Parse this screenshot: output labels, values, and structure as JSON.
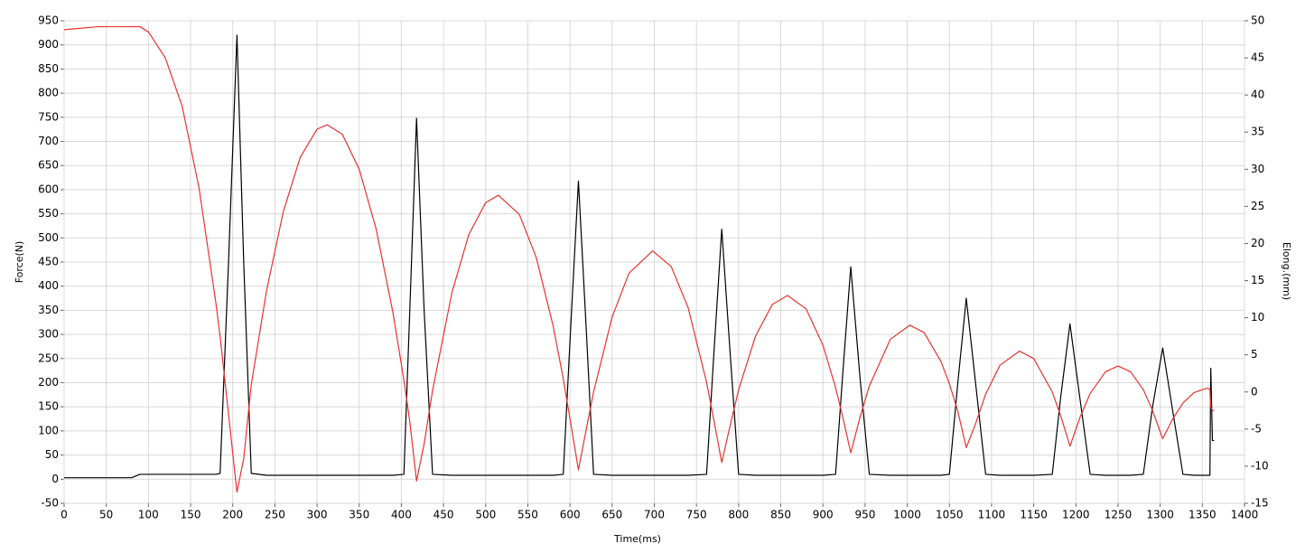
{
  "chart_data": {
    "type": "line",
    "xlabel": "Time(ms)",
    "ylabel": "Force(N)",
    "y2label": "Elong.(mm)",
    "x": [
      0,
      20,
      40,
      60,
      80,
      90,
      100,
      120,
      140,
      160,
      180,
      185,
      195,
      205,
      213,
      222,
      240,
      260,
      280,
      300,
      312,
      330,
      350,
      370,
      390,
      403,
      410,
      418,
      427,
      437,
      460,
      480,
      500,
      515,
      540,
      560,
      580,
      592,
      601,
      610,
      619,
      628,
      650,
      670,
      698,
      720,
      740,
      762,
      771,
      780,
      790,
      800,
      820,
      840,
      858,
      880,
      900,
      915,
      924,
      933,
      944,
      955,
      980,
      1003,
      1020,
      1040,
      1050,
      1060,
      1070,
      1081,
      1093,
      1110,
      1133,
      1150,
      1172,
      1182,
      1193,
      1205,
      1217,
      1235,
      1250,
      1265,
      1280,
      1291,
      1303,
      1315,
      1327,
      1340,
      1355,
      1359,
      1360,
      1362,
      1364
    ],
    "series": [
      {
        "color": "#000000",
        "values": [
          3,
          3,
          3,
          3,
          3,
          10,
          10,
          10,
          10,
          10,
          10,
          12,
          450,
          920,
          450,
          12,
          8,
          8,
          8,
          8,
          8,
          8,
          8,
          8,
          8,
          10,
          350,
          748,
          350,
          10,
          8,
          8,
          8,
          8,
          8,
          8,
          8,
          10,
          320,
          618,
          320,
          10,
          8,
          8,
          8,
          8,
          8,
          10,
          270,
          518,
          260,
          10,
          8,
          8,
          8,
          8,
          8,
          10,
          230,
          440,
          210,
          10,
          8,
          8,
          8,
          8,
          10,
          200,
          375,
          200,
          10,
          8,
          8,
          8,
          10,
          170,
          322,
          165,
          10,
          8,
          8,
          8,
          10,
          150,
          272,
          140,
          10,
          8,
          8,
          8,
          230,
          80,
          80
        ]
      },
      {
        "color": "#e8322f",
        "axis": "y2",
        "values": [
          48.8,
          49.0,
          49.2,
          49.2,
          49.2,
          49.2,
          48.5,
          45,
          38.5,
          27.5,
          12,
          7.5,
          -3,
          -13.5,
          -9,
          1,
          13.6,
          24.3,
          31.6,
          35.4,
          36,
          34.7,
          30,
          22,
          10.7,
          1.6,
          -4,
          -12,
          -7,
          0.2,
          13.4,
          21.2,
          25.5,
          26.5,
          23.9,
          18.1,
          8.9,
          1.8,
          -4.3,
          -10.5,
          -5.2,
          0,
          10.1,
          16,
          19,
          16.9,
          11.4,
          1.3,
          -4,
          -9.5,
          -4.5,
          0.3,
          7.5,
          11.8,
          13,
          11.2,
          6.3,
          0.6,
          -3.6,
          -8.2,
          -3.4,
          0.8,
          7.1,
          9,
          8,
          4.1,
          1.1,
          -2.6,
          -7.5,
          -4.3,
          -0.3,
          3.6,
          5.5,
          4.5,
          0,
          -3.2,
          -7.3,
          -3.4,
          -0.2,
          2.7,
          3.5,
          2.7,
          0.3,
          -2.5,
          -6.3,
          -3.6,
          -1.5,
          -0.1,
          0.5,
          0.4,
          -2,
          -2.5,
          -2.5
        ]
      }
    ],
    "xlim": [
      0,
      1400
    ],
    "xticks": [
      0,
      50,
      100,
      150,
      200,
      250,
      300,
      350,
      400,
      450,
      500,
      550,
      600,
      650,
      700,
      750,
      800,
      850,
      900,
      950,
      1000,
      1050,
      1100,
      1150,
      1200,
      1250,
      1300,
      1350,
      1400
    ],
    "ylim": [
      -50,
      950
    ],
    "yticks": [
      -50,
      0,
      50,
      100,
      150,
      200,
      250,
      300,
      350,
      400,
      450,
      500,
      550,
      600,
      650,
      700,
      750,
      800,
      850,
      900,
      950
    ],
    "y2lim": [
      -15,
      50
    ],
    "y2ticks": [
      -15,
      -10,
      -5,
      0,
      5,
      10,
      15,
      20,
      25,
      30,
      35,
      40,
      45,
      50
    ],
    "grid": true
  }
}
